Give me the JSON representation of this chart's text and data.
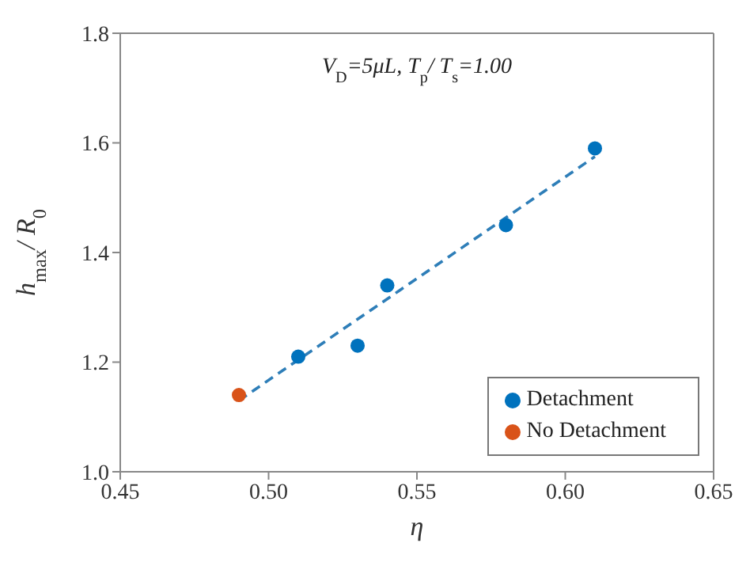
{
  "chart_data": {
    "type": "scatter",
    "xlabel": "η",
    "ylabel": "h$_{max}$/ R$_{0}$",
    "annotations": [
      "V$_{D}$=5μL,  T$_{p}$/ T$_{s}$=1.00"
    ],
    "series": [
      {
        "name": "Detachment",
        "color": "#0072bd",
        "x": [
          0.51,
          0.53,
          0.54,
          0.58,
          0.61
        ],
        "values": [
          1.21,
          1.23,
          1.34,
          1.45,
          1.59
        ]
      },
      {
        "name": "No Detachment",
        "color": "#d95319",
        "x": [
          0.49
        ],
        "values": [
          1.14
        ]
      },
      {
        "type": "line",
        "color": "#2e7eb8",
        "x": [
          0.49,
          0.61
        ],
        "values": [
          1.13,
          1.575
        ],
        "line_style": "dashed",
        "marker": "none"
      }
    ],
    "xlim": [
      0.45,
      0.65
    ],
    "xticks": [
      {
        "value": 0.45,
        "label": "0.45"
      },
      {
        "value": 0.5,
        "label": "0.50"
      },
      {
        "value": 0.55,
        "label": "0.55"
      },
      {
        "value": 0.6,
        "label": "0.60"
      },
      {
        "value": 0.65,
        "label": "0.65"
      }
    ],
    "ylim": [
      1.0,
      1.8
    ],
    "yticks": [
      {
        "value": 1.0,
        "label": "1.0"
      },
      {
        "value": 1.2,
        "label": "1.2"
      },
      {
        "value": 1.4,
        "label": "1.4"
      },
      {
        "value": 1.6,
        "label": "1.6"
      },
      {
        "value": 1.8,
        "label": "1.8"
      }
    ],
    "grid": false,
    "legend": "bottom right",
    "marker": "circle"
  }
}
